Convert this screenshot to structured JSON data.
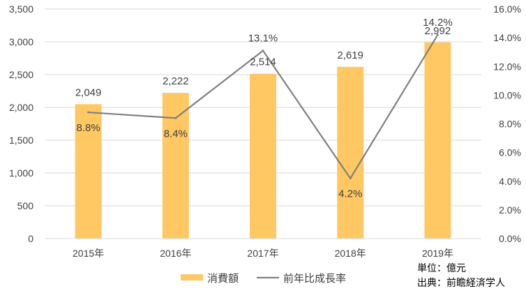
{
  "chart_data": {
    "type": "bar",
    "categories": [
      "2015年",
      "2016年",
      "2017年",
      "2018年",
      "2019年"
    ],
    "series": [
      {
        "name": "消費額",
        "type": "bar",
        "axis": "left",
        "values": [
          2049,
          2222,
          2514,
          2619,
          2992
        ],
        "value_labels": [
          "2,049",
          "2,222",
          "2,514",
          "2,619",
          "2,992"
        ],
        "color": "#FFC862"
      },
      {
        "name": "前年比成長率",
        "type": "line",
        "axis": "right",
        "values": [
          8.8,
          8.4,
          13.1,
          4.2,
          14.2
        ],
        "value_labels": [
          "8.8%",
          "8.4%",
          "13.1%",
          "4.2%",
          "14.2%"
        ],
        "color": "#808080"
      }
    ],
    "ylim_left": [
      0,
      3500
    ],
    "ylim_right": [
      0,
      16
    ],
    "yticks_left": [
      "0",
      "500",
      "1,000",
      "1,500",
      "2,000",
      "2,500",
      "3,000",
      "3,500"
    ],
    "yticks_right": [
      "0.0%",
      "2.0%",
      "4.0%",
      "6.0%",
      "8.0%",
      "10.0%",
      "12.0%",
      "14.0%",
      "16.0%"
    ],
    "grid": true,
    "legend_position": "bottom"
  },
  "notes": {
    "unit": "単位：億元",
    "source": "出典：前瞻経済学人"
  }
}
